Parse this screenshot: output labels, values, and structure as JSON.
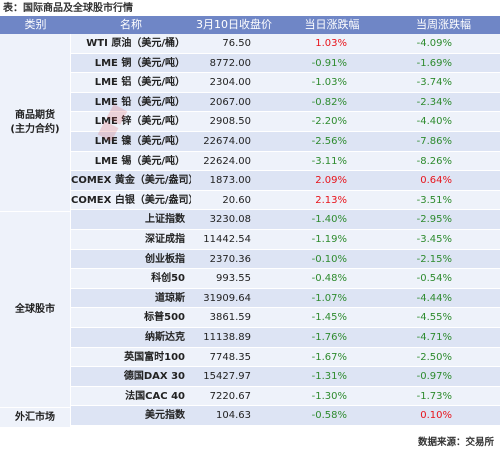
{
  "title": "表：国际商品及全球股市行情",
  "header": {
    "category": "类别",
    "name": "名称",
    "close": "3月10日收盘价",
    "day_change": "当日涨跌幅",
    "week_change": "当周涨跌幅"
  },
  "categories": [
    {
      "label": "商品期货\n(主力合约)"
    },
    {
      "label": "全球股市"
    },
    {
      "label": "外汇市场"
    }
  ],
  "rows": [
    {
      "name": "WTI 原油（美元/桶）",
      "close": "76.50",
      "day": "1.03%",
      "day_dir": "pos",
      "week": "-4.09%",
      "week_dir": "neg"
    },
    {
      "name": "LME 铜（美元/吨）",
      "close": "8772.00",
      "day": "-0.91%",
      "day_dir": "neg",
      "week": "-1.69%",
      "week_dir": "neg"
    },
    {
      "name": "LME 铝（美元/吨）",
      "close": "2304.00",
      "day": "-1.03%",
      "day_dir": "neg",
      "week": "-3.74%",
      "week_dir": "neg"
    },
    {
      "name": "LME 铅（美元/吨）",
      "close": "2067.00",
      "day": "-0.82%",
      "day_dir": "neg",
      "week": "-2.34%",
      "week_dir": "neg"
    },
    {
      "name": "LME 锌（美元/吨）",
      "close": "2908.50",
      "day": "-2.20%",
      "day_dir": "neg",
      "week": "-4.40%",
      "week_dir": "neg"
    },
    {
      "name": "LME 镍（美元/吨）",
      "close": "22674.00",
      "day": "-2.56%",
      "day_dir": "neg",
      "week": "-7.86%",
      "week_dir": "neg"
    },
    {
      "name": "LME 锡（美元/吨）",
      "close": "22624.00",
      "day": "-3.11%",
      "day_dir": "neg",
      "week": "-8.26%",
      "week_dir": "neg"
    },
    {
      "name": "COMEX 黄金（美元/盎司）",
      "close": "1873.00",
      "day": "2.09%",
      "day_dir": "pos",
      "week": "0.64%",
      "week_dir": "pos"
    },
    {
      "name": "COMEX 白银（美元/盎司）",
      "close": "20.60",
      "day": "2.13%",
      "day_dir": "pos",
      "week": "-3.51%",
      "week_dir": "neg"
    },
    {
      "name": "上证指数",
      "close": "3230.08",
      "day": "-1.40%",
      "day_dir": "neg",
      "week": "-2.95%",
      "week_dir": "neg"
    },
    {
      "name": "深证成指",
      "close": "11442.54",
      "day": "-1.19%",
      "day_dir": "neg",
      "week": "-3.45%",
      "week_dir": "neg"
    },
    {
      "name": "创业板指",
      "close": "2370.36",
      "day": "-0.10%",
      "day_dir": "neg",
      "week": "-2.15%",
      "week_dir": "neg"
    },
    {
      "name": "科创50",
      "close": "993.55",
      "day": "-0.48%",
      "day_dir": "neg",
      "week": "-0.54%",
      "week_dir": "neg"
    },
    {
      "name": "道琼斯",
      "close": "31909.64",
      "day": "-1.07%",
      "day_dir": "neg",
      "week": "-4.44%",
      "week_dir": "neg"
    },
    {
      "name": "标普500",
      "close": "3861.59",
      "day": "-1.45%",
      "day_dir": "neg",
      "week": "-4.55%",
      "week_dir": "neg"
    },
    {
      "name": "纳斯达克",
      "close": "11138.89",
      "day": "-1.76%",
      "day_dir": "neg",
      "week": "-4.71%",
      "week_dir": "neg"
    },
    {
      "name": "英国富时100",
      "close": "7748.35",
      "day": "-1.67%",
      "day_dir": "neg",
      "week": "-2.50%",
      "week_dir": "neg"
    },
    {
      "name": "德国DAX 30",
      "close": "15427.97",
      "day": "-1.31%",
      "day_dir": "neg",
      "week": "-0.97%",
      "week_dir": "neg"
    },
    {
      "name": "法国CAC 40",
      "close": "7220.67",
      "day": "-1.30%",
      "day_dir": "neg",
      "week": "-1.73%",
      "week_dir": "neg"
    },
    {
      "name": "美元指数",
      "close": "104.63",
      "day": "-0.58%",
      "day_dir": "neg",
      "week": "0.10%",
      "week_dir": "pos"
    }
  ],
  "footer": "数据来源：交易所",
  "colors": {
    "header_bg": "#6f86c6",
    "positive": "#e8141b",
    "negative": "#2e8b2e",
    "row_light": "#eef2fa",
    "row_dark": "#dde4f4"
  }
}
